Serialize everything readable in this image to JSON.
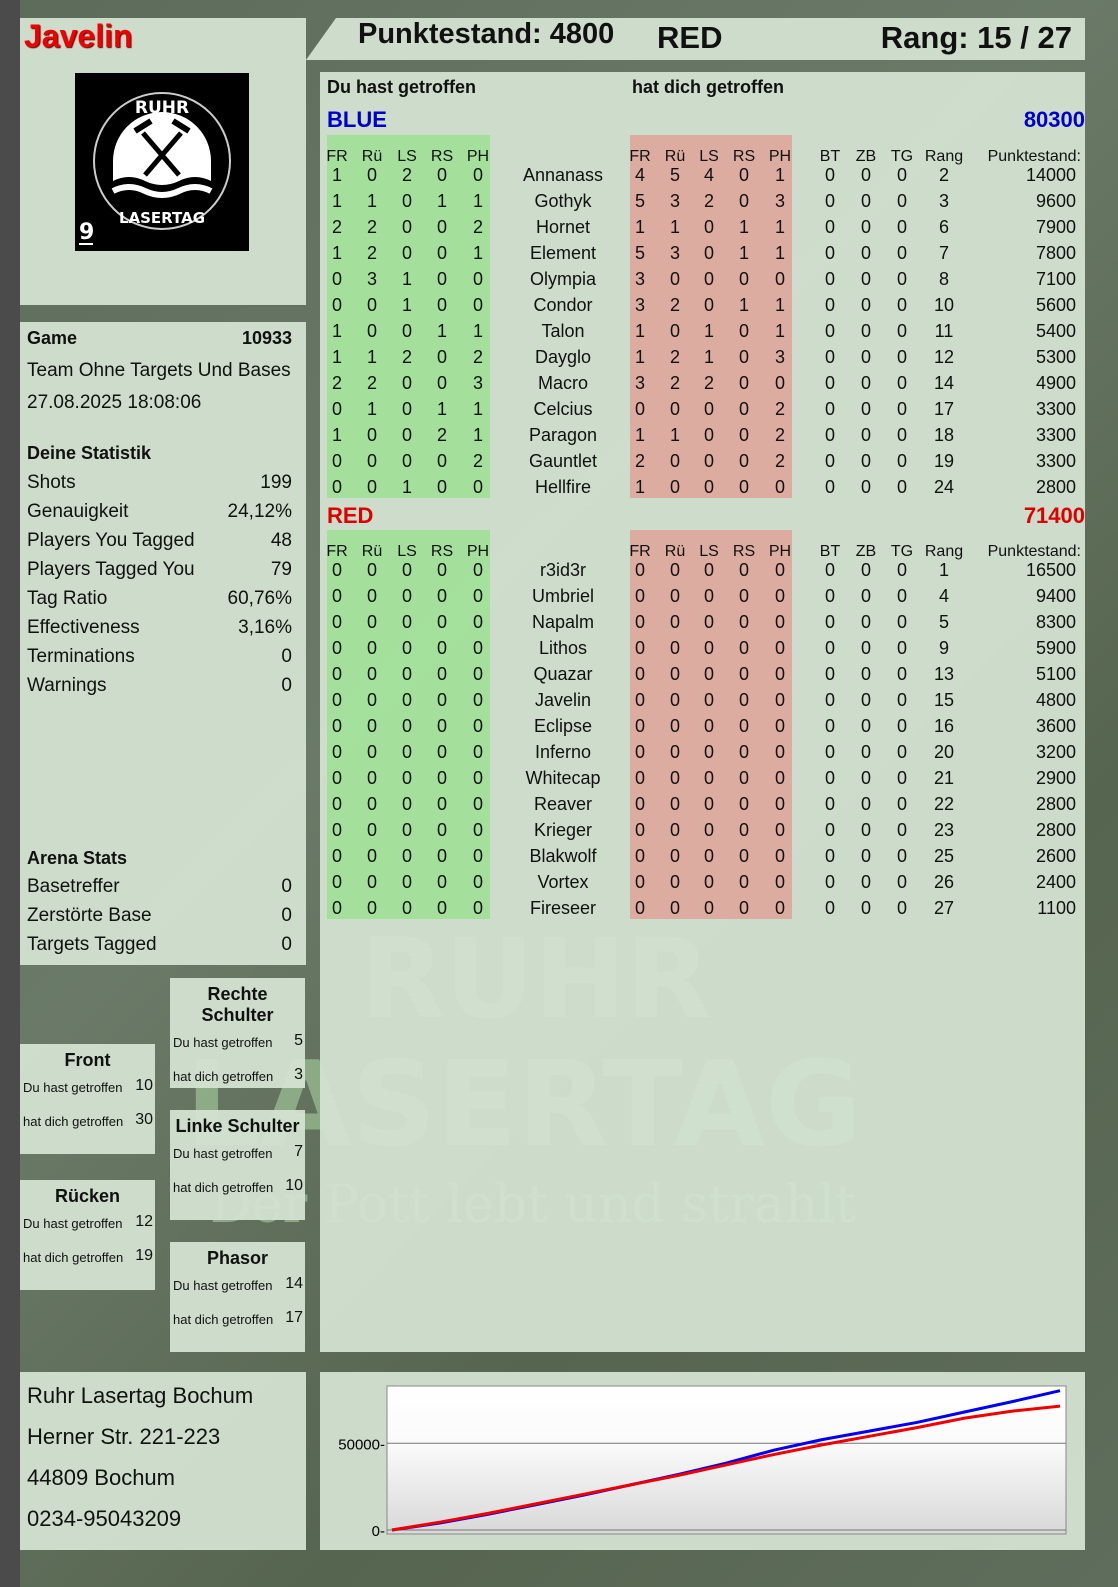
{
  "player": {
    "name": "Javelin",
    "logo_text_top": "RUHR",
    "logo_text_bottom": "LASERTAG",
    "logo_number": "9"
  },
  "header": {
    "score": "Punktestand: 4800",
    "team": "RED",
    "rank": "Rang: 15 / 27"
  },
  "game": {
    "label": "Game",
    "id": "10933",
    "mode": "Team Ohne Targets Und Bases",
    "datetime": "27.08.2025 18:08:06"
  },
  "stats": {
    "title": "Deine Statistik",
    "items": [
      {
        "label": "Shots",
        "value": "199"
      },
      {
        "label": "Genauigkeit",
        "value": "24,12%"
      },
      {
        "label": "Players You Tagged",
        "value": "48"
      },
      {
        "label": "Players Tagged You",
        "value": "79"
      },
      {
        "label": "Tag Ratio",
        "value": "60,76%"
      },
      {
        "label": "Effectiveness",
        "value": "3,16%"
      },
      {
        "label": "Terminations",
        "value": "0"
      },
      {
        "label": "Warnings",
        "value": "0"
      }
    ]
  },
  "arena": {
    "title": "Arena Stats",
    "items": [
      {
        "label": "Basetreffer",
        "value": "0"
      },
      {
        "label": "Zerstörte Base",
        "value": "0"
      },
      {
        "label": "Targets Tagged",
        "value": "0"
      }
    ]
  },
  "hitzones": [
    {
      "title": "Rechte Schulter",
      "you_hit_label": "Du hast getroffen",
      "you_hit": "5",
      "hit_you_label": "hat dich getroffen",
      "hit_you": "3"
    },
    {
      "title": "Front",
      "you_hit_label": "Du hast getroffen",
      "you_hit": "10",
      "hit_you_label": "hat dich getroffen",
      "hit_you": "30"
    },
    {
      "title": "Linke Schulter",
      "you_hit_label": "Du hast getroffen",
      "you_hit": "7",
      "hit_you_label": "hat dich getroffen",
      "hit_you": "10"
    },
    {
      "title": "Rücken",
      "you_hit_label": "Du hast getroffen",
      "you_hit": "12",
      "hit_you_label": "hat dich getroffen",
      "hit_you": "19"
    },
    {
      "title": "Phasor",
      "you_hit_label": "Du hast getroffen",
      "you_hit": "14",
      "hit_you_label": "hat dich getroffen",
      "hit_you": "17"
    }
  ],
  "address": {
    "lines": [
      "Ruhr Lasertag Bochum",
      "Herner Str. 221-223",
      "44809 Bochum",
      "0234-95043209"
    ]
  },
  "table": {
    "you_hit_title": "Du hast getroffen",
    "hit_you_title": "hat dich getroffen",
    "hit_columns": [
      "FR",
      "Rü",
      "LS",
      "RS",
      "PH"
    ],
    "extra_columns": [
      "BT",
      "ZB",
      "TG",
      "Rang",
      "Punktestand:"
    ],
    "teams": [
      {
        "name": "BLUE",
        "score": "80300",
        "color": "#0000cc",
        "players": [
          {
            "name": "Annanass",
            "you_hit": [
              1,
              0,
              2,
              0,
              0
            ],
            "hit_you": [
              4,
              5,
              4,
              0,
              1
            ],
            "bt": 0,
            "zb": 0,
            "tg": 0,
            "rank": 2,
            "score": 14000
          },
          {
            "name": "Gothyk",
            "you_hit": [
              1,
              1,
              0,
              1,
              1
            ],
            "hit_you": [
              5,
              3,
              2,
              0,
              3
            ],
            "bt": 0,
            "zb": 0,
            "tg": 0,
            "rank": 3,
            "score": 9600
          },
          {
            "name": "Hornet",
            "you_hit": [
              2,
              2,
              0,
              0,
              2
            ],
            "hit_you": [
              1,
              1,
              0,
              1,
              1
            ],
            "bt": 0,
            "zb": 0,
            "tg": 0,
            "rank": 6,
            "score": 7900
          },
          {
            "name": "Element",
            "you_hit": [
              1,
              2,
              0,
              0,
              1
            ],
            "hit_you": [
              5,
              3,
              0,
              1,
              1
            ],
            "bt": 0,
            "zb": 0,
            "tg": 0,
            "rank": 7,
            "score": 7800
          },
          {
            "name": "Olympia",
            "you_hit": [
              0,
              3,
              1,
              0,
              0
            ],
            "hit_you": [
              3,
              0,
              0,
              0,
              0
            ],
            "bt": 0,
            "zb": 0,
            "tg": 0,
            "rank": 8,
            "score": 7100
          },
          {
            "name": "Condor",
            "you_hit": [
              0,
              0,
              1,
              0,
              0
            ],
            "hit_you": [
              3,
              2,
              0,
              1,
              1
            ],
            "bt": 0,
            "zb": 0,
            "tg": 0,
            "rank": 10,
            "score": 5600
          },
          {
            "name": "Talon",
            "you_hit": [
              1,
              0,
              0,
              1,
              1
            ],
            "hit_you": [
              1,
              0,
              1,
              0,
              1
            ],
            "bt": 0,
            "zb": 0,
            "tg": 0,
            "rank": 11,
            "score": 5400
          },
          {
            "name": "Dayglo",
            "you_hit": [
              1,
              1,
              2,
              0,
              2
            ],
            "hit_you": [
              1,
              2,
              1,
              0,
              3
            ],
            "bt": 0,
            "zb": 0,
            "tg": 0,
            "rank": 12,
            "score": 5300
          },
          {
            "name": "Macro",
            "you_hit": [
              2,
              2,
              0,
              0,
              3
            ],
            "hit_you": [
              3,
              2,
              2,
              0,
              0
            ],
            "bt": 0,
            "zb": 0,
            "tg": 0,
            "rank": 14,
            "score": 4900
          },
          {
            "name": "Celcius",
            "you_hit": [
              0,
              1,
              0,
              1,
              1
            ],
            "hit_you": [
              0,
              0,
              0,
              0,
              2
            ],
            "bt": 0,
            "zb": 0,
            "tg": 0,
            "rank": 17,
            "score": 3300
          },
          {
            "name": "Paragon",
            "you_hit": [
              1,
              0,
              0,
              2,
              1
            ],
            "hit_you": [
              1,
              1,
              0,
              0,
              2
            ],
            "bt": 0,
            "zb": 0,
            "tg": 0,
            "rank": 18,
            "score": 3300
          },
          {
            "name": "Gauntlet",
            "you_hit": [
              0,
              0,
              0,
              0,
              2
            ],
            "hit_you": [
              2,
              0,
              0,
              0,
              2
            ],
            "bt": 0,
            "zb": 0,
            "tg": 0,
            "rank": 19,
            "score": 3300
          },
          {
            "name": "Hellfire",
            "you_hit": [
              0,
              0,
              1,
              0,
              0
            ],
            "hit_you": [
              1,
              0,
              0,
              0,
              0
            ],
            "bt": 0,
            "zb": 0,
            "tg": 0,
            "rank": 24,
            "score": 2800
          }
        ]
      },
      {
        "name": "RED",
        "score": "71400",
        "color": "#dd0000",
        "players": [
          {
            "name": "r3id3r",
            "you_hit": [
              0,
              0,
              0,
              0,
              0
            ],
            "hit_you": [
              0,
              0,
              0,
              0,
              0
            ],
            "bt": 0,
            "zb": 0,
            "tg": 0,
            "rank": 1,
            "score": 16500
          },
          {
            "name": "Umbriel",
            "you_hit": [
              0,
              0,
              0,
              0,
              0
            ],
            "hit_you": [
              0,
              0,
              0,
              0,
              0
            ],
            "bt": 0,
            "zb": 0,
            "tg": 0,
            "rank": 4,
            "score": 9400
          },
          {
            "name": "Napalm",
            "you_hit": [
              0,
              0,
              0,
              0,
              0
            ],
            "hit_you": [
              0,
              0,
              0,
              0,
              0
            ],
            "bt": 0,
            "zb": 0,
            "tg": 0,
            "rank": 5,
            "score": 8300
          },
          {
            "name": "Lithos",
            "you_hit": [
              0,
              0,
              0,
              0,
              0
            ],
            "hit_you": [
              0,
              0,
              0,
              0,
              0
            ],
            "bt": 0,
            "zb": 0,
            "tg": 0,
            "rank": 9,
            "score": 5900
          },
          {
            "name": "Quazar",
            "you_hit": [
              0,
              0,
              0,
              0,
              0
            ],
            "hit_you": [
              0,
              0,
              0,
              0,
              0
            ],
            "bt": 0,
            "zb": 0,
            "tg": 0,
            "rank": 13,
            "score": 5100
          },
          {
            "name": "Javelin",
            "you_hit": [
              0,
              0,
              0,
              0,
              0
            ],
            "hit_you": [
              0,
              0,
              0,
              0,
              0
            ],
            "bt": 0,
            "zb": 0,
            "tg": 0,
            "rank": 15,
            "score": 4800
          },
          {
            "name": "Eclipse",
            "you_hit": [
              0,
              0,
              0,
              0,
              0
            ],
            "hit_you": [
              0,
              0,
              0,
              0,
              0
            ],
            "bt": 0,
            "zb": 0,
            "tg": 0,
            "rank": 16,
            "score": 3600
          },
          {
            "name": "Inferno",
            "you_hit": [
              0,
              0,
              0,
              0,
              0
            ],
            "hit_you": [
              0,
              0,
              0,
              0,
              0
            ],
            "bt": 0,
            "zb": 0,
            "tg": 0,
            "rank": 20,
            "score": 3200
          },
          {
            "name": "Whitecap",
            "you_hit": [
              0,
              0,
              0,
              0,
              0
            ],
            "hit_you": [
              0,
              0,
              0,
              0,
              0
            ],
            "bt": 0,
            "zb": 0,
            "tg": 0,
            "rank": 21,
            "score": 2900
          },
          {
            "name": "Reaver",
            "you_hit": [
              0,
              0,
              0,
              0,
              0
            ],
            "hit_you": [
              0,
              0,
              0,
              0,
              0
            ],
            "bt": 0,
            "zb": 0,
            "tg": 0,
            "rank": 22,
            "score": 2800
          },
          {
            "name": "Krieger",
            "you_hit": [
              0,
              0,
              0,
              0,
              0
            ],
            "hit_you": [
              0,
              0,
              0,
              0,
              0
            ],
            "bt": 0,
            "zb": 0,
            "tg": 0,
            "rank": 23,
            "score": 2800
          },
          {
            "name": "Blakwolf",
            "you_hit": [
              0,
              0,
              0,
              0,
              0
            ],
            "hit_you": [
              0,
              0,
              0,
              0,
              0
            ],
            "bt": 0,
            "zb": 0,
            "tg": 0,
            "rank": 25,
            "score": 2600
          },
          {
            "name": "Vortex",
            "you_hit": [
              0,
              0,
              0,
              0,
              0
            ],
            "hit_you": [
              0,
              0,
              0,
              0,
              0
            ],
            "bt": 0,
            "zb": 0,
            "tg": 0,
            "rank": 26,
            "score": 2400
          },
          {
            "name": "Fireseer",
            "you_hit": [
              0,
              0,
              0,
              0,
              0
            ],
            "hit_you": [
              0,
              0,
              0,
              0,
              0
            ],
            "bt": 0,
            "zb": 0,
            "tg": 0,
            "rank": 27,
            "score": 1100
          }
        ]
      }
    ]
  },
  "watermark": {
    "line1": "RUHR",
    "line2": "LASERTAG",
    "slogan": "Der Pott lebt und strahlt"
  },
  "chart_data": {
    "type": "line",
    "ylim": [
      0,
      83000
    ],
    "yticks": [
      0,
      50000
    ],
    "ytick_labels": [
      "0",
      "50000"
    ],
    "grid": true,
    "x": [
      0,
      1,
      2,
      3,
      4,
      5,
      6,
      7,
      8,
      9,
      10,
      11,
      12,
      13,
      14
    ],
    "series": [
      {
        "color": "#0000ee",
        "values": [
          0,
          4000,
          9000,
          14500,
          20000,
          26000,
          32000,
          38500,
          46000,
          52000,
          57000,
          62000,
          68000,
          74000,
          80300
        ]
      },
      {
        "color": "#ee0000",
        "values": [
          0,
          4500,
          9500,
          15000,
          20500,
          26000,
          31500,
          37500,
          43500,
          49000,
          54000,
          59000,
          64500,
          68500,
          71400
        ]
      }
    ]
  }
}
